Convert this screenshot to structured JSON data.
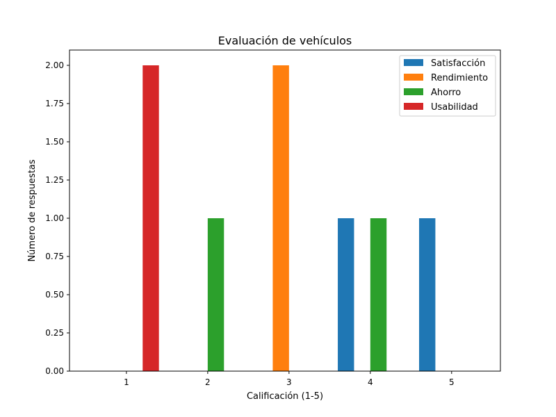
{
  "chart_data": {
    "type": "bar",
    "title": "Evaluación de vehículos",
    "xlabel": "Calificación (1-5)",
    "ylabel": "Número de respuestas",
    "categories": [
      1,
      2,
      3,
      4,
      5
    ],
    "x_tick_labels": [
      "1",
      "2",
      "3",
      "4",
      "5"
    ],
    "ylim": [
      0,
      2.1
    ],
    "y_ticks": [
      0,
      0.25,
      0.5,
      0.75,
      1.0,
      1.25,
      1.5,
      1.75,
      2.0
    ],
    "y_tick_labels": [
      "0.00",
      "0.25",
      "0.50",
      "0.75",
      "1.00",
      "1.25",
      "1.50",
      "1.75",
      "2.00"
    ],
    "grid": false,
    "legend_position": "top-right",
    "series": [
      {
        "name": "Satisfacción",
        "color": "#1f77b4",
        "values": [
          0,
          0,
          0,
          1,
          1
        ]
      },
      {
        "name": "Rendimiento",
        "color": "#ff7f0e",
        "values": [
          0,
          0,
          2,
          0,
          0
        ]
      },
      {
        "name": "Ahorro",
        "color": "#2ca02c",
        "values": [
          0,
          1,
          0,
          1,
          0
        ]
      },
      {
        "name": "Usabilidad",
        "color": "#d62728",
        "values": [
          2,
          0,
          0,
          0,
          0
        ]
      }
    ]
  }
}
